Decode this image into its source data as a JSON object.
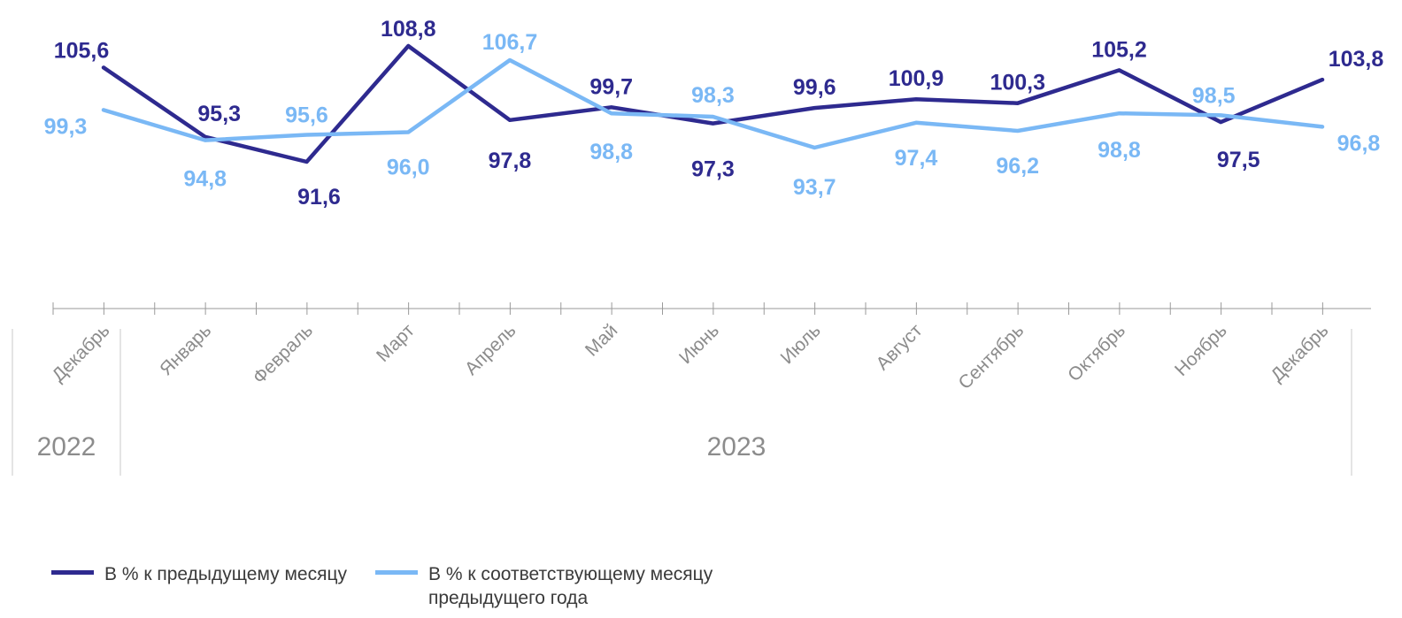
{
  "chart_data": {
    "type": "line",
    "categories": [
      "Декабрь",
      "Январь",
      "Февраль",
      "Март",
      "Апрель",
      "Май",
      "Июнь",
      "Июль",
      "Август",
      "Сентябрь",
      "Октябрь",
      "Ноябрь",
      "Декабрь"
    ],
    "year_groups": [
      {
        "label": "2022",
        "span": 1
      },
      {
        "label": "2023",
        "span": 12
      }
    ],
    "series": [
      {
        "name": "В % к предыдущему месяцу",
        "color": "#2e2a8f",
        "values": [
          105.6,
          95.3,
          91.6,
          108.8,
          97.8,
          99.7,
          97.3,
          99.6,
          100.9,
          100.3,
          105.2,
          97.5,
          103.8
        ]
      },
      {
        "name": "В % к соответствующему месяцу предыдущего года",
        "color": "#7ab8f5",
        "values": [
          99.3,
          94.8,
          95.6,
          96.0,
          106.7,
          98.8,
          98.3,
          93.7,
          97.4,
          96.2,
          98.8,
          98.5,
          96.8
        ]
      }
    ],
    "value_labels": [
      [
        "105,6",
        "95,3",
        "91,6",
        "108,8",
        "97,8",
        "99,7",
        "97,3",
        "99,6",
        "100,9",
        "100,3",
        "105,2",
        "97,5",
        "103,8"
      ],
      [
        "99,3",
        "94,8",
        "95,6",
        "96,0",
        "106,7",
        "98,8",
        "98,3",
        "93,7",
        "97,4",
        "96,2",
        "98,8",
        "98,5",
        "96,8"
      ]
    ],
    "grid": false,
    "legend_position": "bottom-left"
  }
}
